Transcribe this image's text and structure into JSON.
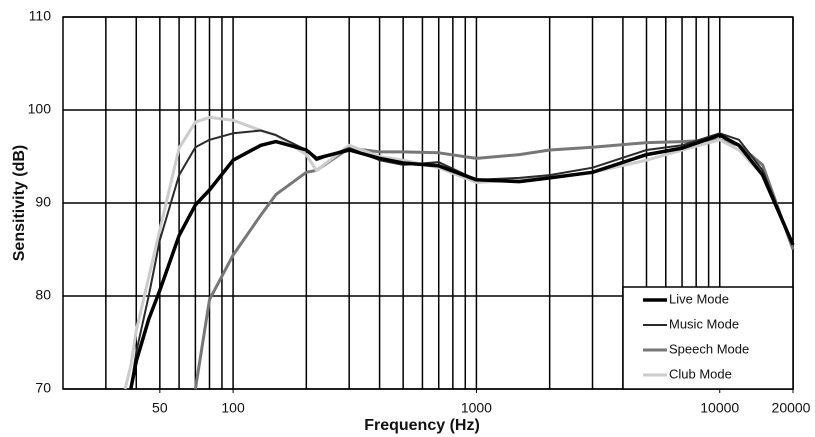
{
  "chart_data": {
    "type": "line",
    "xlabel": "Frequency (Hz)",
    "ylabel": "Sensitivity (dB)",
    "xscale": "log",
    "xlim": [
      20,
      20000
    ],
    "ylim": [
      70,
      110
    ],
    "xticks": [
      50,
      100,
      1000,
      10000,
      20000
    ],
    "xgrid_minor": [
      30,
      40,
      50,
      60,
      70,
      80,
      90,
      100,
      200,
      300,
      400,
      500,
      600,
      700,
      800,
      900,
      1000,
      2000,
      3000,
      4000,
      5000,
      6000,
      7000,
      8000,
      9000,
      10000,
      20000
    ],
    "yticks": [
      70,
      80,
      90,
      100,
      110
    ],
    "grid": true,
    "legend": "lower right",
    "x": [
      36,
      38,
      40,
      45,
      50,
      60,
      70,
      80,
      100,
      130,
      150,
      200,
      220,
      300,
      400,
      500,
      700,
      1000,
      1500,
      2000,
      3000,
      5000,
      7000,
      10000,
      12000,
      15000,
      20000
    ],
    "series": [
      {
        "name": "Live Mode",
        "color": "#000000",
        "width": 3.5,
        "values": [
          null,
          70,
          73,
          77.5,
          80.6,
          86.5,
          89.8,
          91.4,
          94.6,
          96.2,
          96.6,
          95.7,
          94.8,
          95.7,
          94.8,
          94.3,
          94,
          92.5,
          92.3,
          92.7,
          93.3,
          95.2,
          95.9,
          97.3,
          96.2,
          93,
          85.5
        ]
      },
      {
        "name": "Music Mode",
        "color": "#2a2a2a",
        "width": 2,
        "values": [
          null,
          70,
          74,
          80,
          86,
          93,
          96,
          96.8,
          97.5,
          97.8,
          97.3,
          95.7,
          94.6,
          95.9,
          94.6,
          94.1,
          94.4,
          92.5,
          92.7,
          93,
          93.8,
          95.7,
          96.2,
          97.5,
          96.8,
          93.5,
          85.5
        ]
      },
      {
        "name": "Speech Mode",
        "color": "#777777",
        "width": 3,
        "values": [
          null,
          null,
          null,
          null,
          null,
          null,
          70,
          79.6,
          84.4,
          88.7,
          90.9,
          93.3,
          93.5,
          95.9,
          95.5,
          95.5,
          95.4,
          94.8,
          95.2,
          95.7,
          96,
          96.5,
          96.6,
          96.8,
          96.2,
          94.1,
          85
        ]
      },
      {
        "name": "Club Mode",
        "color": "#cccccc",
        "width": 3,
        "values": [
          70,
          72.5,
          76.3,
          82,
          87.1,
          95.9,
          98.7,
          99.2,
          98.9,
          97.8,
          97.3,
          95.2,
          93.5,
          96.2,
          95,
          94.6,
          93.8,
          92.2,
          92.5,
          92.7,
          93.3,
          94.6,
          95.7,
          96.8,
          95.7,
          93,
          85.5
        ]
      }
    ]
  }
}
